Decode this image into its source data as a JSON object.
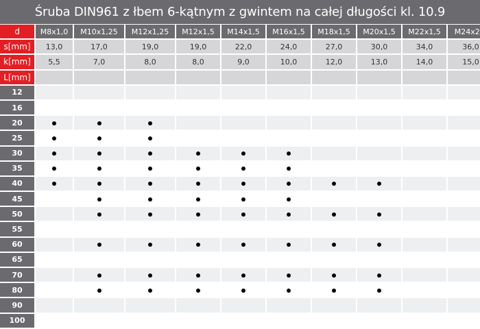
{
  "title": "Śruba DIN961 z łbem 6-kątnym z gwintem na całej długości kl. 10.9",
  "colors": {
    "accent_red": "#e31e24",
    "header_gray": "#6b6b6f",
    "spec_row": "#d6d6d8",
    "alt_row": "#eeeff0"
  },
  "table": {
    "d_label": "d",
    "s_label": "s[mm]",
    "k_label": "k[mm]",
    "L_label": "L[mm]",
    "sizes": [
      "M8x1,0",
      "M10x1,25",
      "M12x1,25",
      "M12x1,5",
      "M14x1,5",
      "M16x1,5",
      "M18x1,5",
      "M20x1,5",
      "M22x1,5",
      "M24x2,0"
    ],
    "s": [
      "13,0",
      "17,0",
      "19,0",
      "19,0",
      "22,0",
      "24,0",
      "27,0",
      "30,0",
      "34,0",
      "36,0"
    ],
    "k": [
      "5,5",
      "7,0",
      "8,0",
      "8,0",
      "9,0",
      "10,0",
      "12,0",
      "13,0",
      "14,0",
      "15,0"
    ],
    "availability_marker": "dot-icon",
    "lengths": [
      {
        "L": "12",
        "available": [
          0,
          0,
          0,
          0,
          0,
          0,
          0,
          0,
          0,
          0
        ]
      },
      {
        "L": "16",
        "available": [
          0,
          0,
          0,
          0,
          0,
          0,
          0,
          0,
          0,
          0
        ]
      },
      {
        "L": "20",
        "available": [
          1,
          1,
          1,
          0,
          0,
          0,
          0,
          0,
          0,
          0
        ]
      },
      {
        "L": "25",
        "available": [
          1,
          1,
          1,
          0,
          0,
          0,
          0,
          0,
          0,
          0
        ]
      },
      {
        "L": "30",
        "available": [
          1,
          1,
          1,
          1,
          1,
          1,
          0,
          0,
          0,
          0
        ]
      },
      {
        "L": "35",
        "available": [
          1,
          1,
          1,
          1,
          1,
          1,
          0,
          0,
          0,
          0
        ]
      },
      {
        "L": "40",
        "available": [
          1,
          1,
          1,
          1,
          1,
          1,
          1,
          1,
          0,
          0
        ]
      },
      {
        "L": "45",
        "available": [
          0,
          1,
          1,
          1,
          1,
          1,
          0,
          0,
          0,
          0
        ]
      },
      {
        "L": "50",
        "available": [
          0,
          1,
          1,
          1,
          1,
          1,
          1,
          1,
          0,
          0
        ]
      },
      {
        "L": "55",
        "available": [
          0,
          0,
          0,
          0,
          0,
          0,
          0,
          0,
          0,
          0
        ]
      },
      {
        "L": "60",
        "available": [
          0,
          1,
          1,
          1,
          1,
          1,
          1,
          1,
          0,
          0
        ]
      },
      {
        "L": "65",
        "available": [
          0,
          0,
          0,
          0,
          0,
          0,
          0,
          0,
          0,
          0
        ]
      },
      {
        "L": "70",
        "available": [
          0,
          1,
          1,
          1,
          1,
          1,
          1,
          1,
          0,
          0
        ]
      },
      {
        "L": "80",
        "available": [
          0,
          1,
          1,
          1,
          1,
          1,
          1,
          1,
          0,
          0
        ]
      },
      {
        "L": "90",
        "available": [
          0,
          0,
          0,
          0,
          0,
          0,
          0,
          0,
          0,
          0
        ]
      },
      {
        "L": "100",
        "available": [
          0,
          0,
          0,
          0,
          0,
          0,
          0,
          0,
          0,
          0
        ]
      }
    ]
  }
}
